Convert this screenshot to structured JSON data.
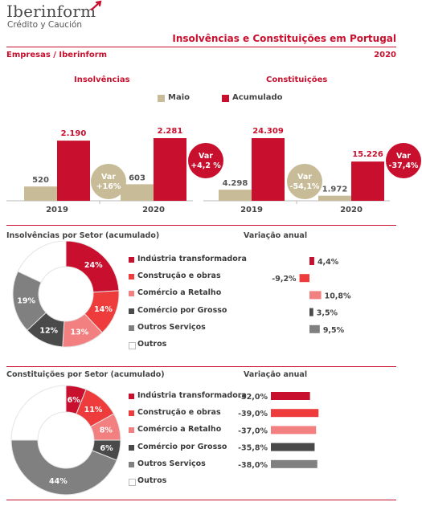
{
  "header": {
    "logo": "Iberinform",
    "logo_sub": "Crédito y Caución",
    "title": "Insolvências e Constituições em  Portugal",
    "source": "Empresas / Iberinform",
    "year": "2020"
  },
  "legend": {
    "month": "Maio",
    "cumulative": "Acumulado"
  },
  "colors": {
    "accent": "#c8102e",
    "tan": "#c8bb98",
    "sectors": [
      "#c8102e",
      "#ee3b3b",
      "#f28080",
      "#4a4a4a",
      "#808080",
      "#ffffff"
    ]
  },
  "chart_data": [
    {
      "type": "bar",
      "title": "Insolvências",
      "categories": [
        "2019",
        "2020"
      ],
      "series": [
        {
          "name": "Maio",
          "values": [
            520,
            603
          ],
          "labels": [
            "520",
            "603"
          ]
        },
        {
          "name": "Acumulado",
          "values": [
            2190,
            2281
          ],
          "labels": [
            "2.190",
            "2.281"
          ]
        }
      ],
      "annotations": [
        {
          "line1": "Var",
          "line2": "+16%",
          "series": "Maio"
        },
        {
          "line1": "Var",
          "line2": "+4,2 %",
          "series": "Acumulado"
        }
      ]
    },
    {
      "type": "bar",
      "title": "Constituições",
      "categories": [
        "2019",
        "2020"
      ],
      "series": [
        {
          "name": "Maio",
          "values": [
            4298,
            1972
          ],
          "labels": [
            "4.298",
            "1.972"
          ]
        },
        {
          "name": "Acumulado",
          "values": [
            24309,
            15226
          ],
          "labels": [
            "24.309",
            "15.226"
          ]
        }
      ],
      "annotations": [
        {
          "line1": "Var",
          "line2": "-54,1%",
          "series": "Maio"
        },
        {
          "line1": "Var",
          "line2": "-37,4%",
          "series": "Acumulado"
        }
      ]
    },
    {
      "type": "pie",
      "title": "Insolvências por Setor (acumulado)",
      "categories": [
        "Indústria transformadora",
        "Construção e obras",
        "Comércio a Retalho",
        "Comércio por Grosso",
        "Outros Serviços",
        "Outros"
      ],
      "values": [
        24,
        14,
        13,
        12,
        19,
        18
      ],
      "labels": [
        "24%",
        "14%",
        "13%",
        "12%",
        "19%",
        ""
      ]
    },
    {
      "type": "bar",
      "title": "Variação anual",
      "orientation": "horizontal",
      "categories": [
        "Indústria transformadora",
        "Construção e obras",
        "Comércio a Retalho",
        "Comércio por Grosso",
        "Outros Serviços"
      ],
      "values": [
        4.4,
        -9.2,
        10.8,
        3.5,
        9.5
      ],
      "labels": [
        "4,4%",
        "-9,2%",
        "10,8%",
        "3,5%",
        "9,5%"
      ]
    },
    {
      "type": "pie",
      "title": "Constituições por Setor (acumulado)",
      "categories": [
        "Indústria transformadora",
        "Construção e obras",
        "Comércio a Retalho",
        "Comércio por Grosso",
        "Outros Serviços",
        "Outros"
      ],
      "values": [
        6,
        11,
        8,
        6,
        44,
        25
      ],
      "labels": [
        "6%",
        "11%",
        "8%",
        "6%",
        "44%",
        ""
      ]
    },
    {
      "type": "bar",
      "title": "Variação anual",
      "orientation": "horizontal",
      "categories": [
        "Indústria transformadora",
        "Construção e obras",
        "Comércio a Retalho",
        "Comércio por Grosso",
        "Outros Serviços"
      ],
      "values": [
        -32.0,
        -39.0,
        -37.0,
        -35.8,
        -38.0
      ],
      "labels": [
        "-32,0%",
        "-39,0%",
        "-37,0%",
        "-35,8%",
        "-38,0%"
      ]
    }
  ]
}
